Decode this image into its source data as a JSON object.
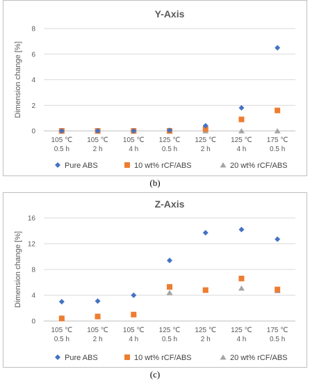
{
  "captions": {
    "b": "(b)",
    "c": "(c)"
  },
  "chart_data": [
    {
      "type": "scatter",
      "title": "Y-Axis",
      "xlabel": "",
      "ylabel": "Dimension change [%]",
      "categories": [
        [
          "105 ℃",
          "0.5 h"
        ],
        [
          "105 ℃",
          "2 h"
        ],
        [
          "105 ℃",
          "4 h"
        ],
        [
          "125 ℃",
          "0.5 h"
        ],
        [
          "125 ℃",
          "2 h"
        ],
        [
          "125 ℃",
          "4 h"
        ],
        [
          "175 ℃",
          "0.5 h"
        ]
      ],
      "ylim": [
        0,
        8
      ],
      "yticks": [
        0,
        2,
        4,
        6,
        8
      ],
      "grid": true,
      "legend": "bottom",
      "series": [
        {
          "name": "Pure ABS",
          "marker": "diamond",
          "color": "#4472C4",
          "values": [
            0,
            0,
            0,
            0.05,
            0.4,
            1.8,
            6.5
          ]
        },
        {
          "name": "10 wt% rCF/ABS",
          "marker": "square",
          "color": "#ED7D31",
          "values": [
            0,
            0,
            0,
            0,
            0.15,
            0.9,
            1.6
          ]
        },
        {
          "name": "20 wt% rCF/ABS",
          "marker": "triangle",
          "color": "#A5A5A5",
          "values": [
            0,
            0,
            0,
            0,
            0,
            0,
            0
          ]
        }
      ]
    },
    {
      "type": "scatter",
      "title": "Z-Axis",
      "xlabel": "",
      "ylabel": "Dimension change [%]",
      "categories": [
        [
          "105 ℃",
          "0.5 h"
        ],
        [
          "105 ℃",
          "2 h"
        ],
        [
          "105 ℃",
          "4 h"
        ],
        [
          "125 ℃",
          "0.5 h"
        ],
        [
          "125 ℃",
          "2 h"
        ],
        [
          "125 ℃",
          "4 h"
        ],
        [
          "175 ℃",
          "0.5 h"
        ]
      ],
      "ylim": [
        0,
        16
      ],
      "yticks": [
        0,
        4,
        8,
        12,
        16
      ],
      "grid": true,
      "legend": "bottom",
      "series": [
        {
          "name": "Pure ABS",
          "marker": "diamond",
          "color": "#4472C4",
          "values": [
            3.0,
            3.1,
            4.0,
            9.4,
            13.7,
            14.2,
            12.7
          ]
        },
        {
          "name": "10 wt% rCF/ABS",
          "marker": "square",
          "color": "#ED7D31",
          "values": [
            0.4,
            0.7,
            1.0,
            5.3,
            4.8,
            6.6,
            4.9
          ]
        },
        {
          "name": "20 wt% rCF/ABS",
          "marker": "triangle",
          "color": "#A5A5A5",
          "values": [
            0.5,
            0.8,
            1.0,
            4.4,
            4.8,
            5.1,
            4.7
          ]
        }
      ]
    }
  ]
}
